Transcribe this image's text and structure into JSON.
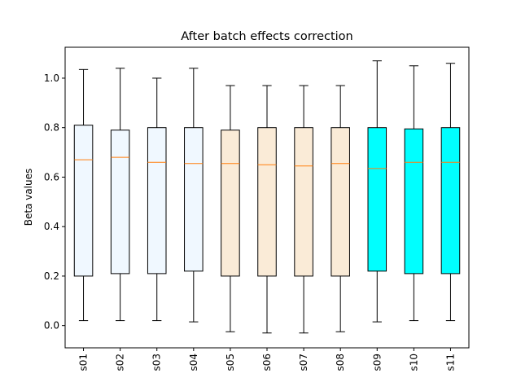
{
  "chart_data": {
    "type": "boxplot",
    "title": "After batch effects correction",
    "xlabel": "",
    "ylabel": "Beta values",
    "ylim": [
      -0.09,
      1.125
    ],
    "yticks": [
      0.0,
      0.2,
      0.4,
      0.6,
      0.8,
      1.0
    ],
    "ytick_labels": [
      "0.0",
      "0.2",
      "0.4",
      "0.6",
      "0.8",
      "1.0"
    ],
    "grid": false,
    "legend": "none",
    "categories": [
      "s01",
      "s02",
      "s03",
      "s04",
      "s05",
      "s06",
      "s07",
      "s08",
      "s09",
      "s10",
      "s11"
    ],
    "boxes": [
      {
        "label": "s01",
        "whislo": 0.02,
        "q1": 0.2,
        "med": 0.67,
        "q3": 0.81,
        "whishi": 1.035,
        "color": "#f0f8ff"
      },
      {
        "label": "s02",
        "whislo": 0.02,
        "q1": 0.21,
        "med": 0.68,
        "q3": 0.79,
        "whishi": 1.04,
        "color": "#f0f8ff"
      },
      {
        "label": "s03",
        "whislo": 0.02,
        "q1": 0.21,
        "med": 0.66,
        "q3": 0.8,
        "whishi": 1.0,
        "color": "#f0f8ff"
      },
      {
        "label": "s04",
        "whislo": 0.015,
        "q1": 0.22,
        "med": 0.655,
        "q3": 0.8,
        "whishi": 1.04,
        "color": "#f0f8ff"
      },
      {
        "label": "s05",
        "whislo": -0.025,
        "q1": 0.2,
        "med": 0.655,
        "q3": 0.79,
        "whishi": 0.97,
        "color": "#faebd7"
      },
      {
        "label": "s06",
        "whislo": -0.03,
        "q1": 0.2,
        "med": 0.65,
        "q3": 0.8,
        "whishi": 0.97,
        "color": "#faebd7"
      },
      {
        "label": "s07",
        "whislo": -0.03,
        "q1": 0.2,
        "med": 0.645,
        "q3": 0.8,
        "whishi": 0.97,
        "color": "#faebd7"
      },
      {
        "label": "s08",
        "whislo": -0.025,
        "q1": 0.2,
        "med": 0.655,
        "q3": 0.8,
        "whishi": 0.97,
        "color": "#faebd7"
      },
      {
        "label": "s09",
        "whislo": 0.015,
        "q1": 0.22,
        "med": 0.635,
        "q3": 0.8,
        "whishi": 1.07,
        "color": "#00ffff"
      },
      {
        "label": "s10",
        "whislo": 0.02,
        "q1": 0.21,
        "med": 0.66,
        "q3": 0.795,
        "whishi": 1.05,
        "color": "#00ffff"
      },
      {
        "label": "s11",
        "whislo": 0.02,
        "q1": 0.21,
        "med": 0.66,
        "q3": 0.8,
        "whishi": 1.06,
        "color": "#00ffff"
      }
    ],
    "median_color": "#ff7f0e"
  }
}
